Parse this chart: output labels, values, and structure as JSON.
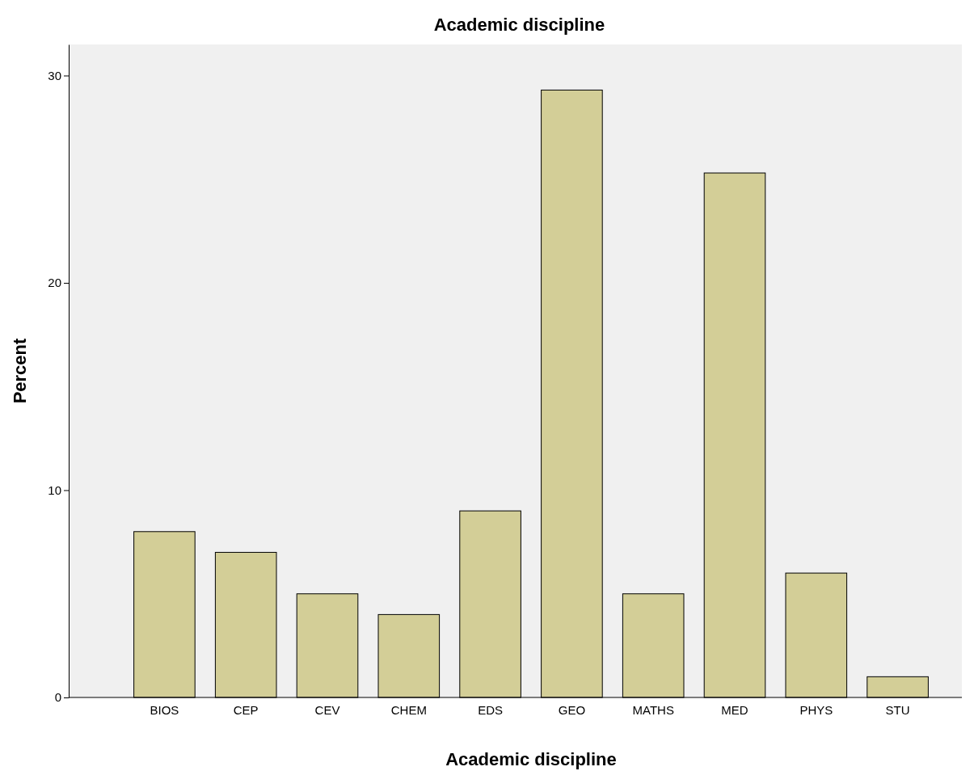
{
  "chart_data": {
    "type": "bar",
    "title": "Academic discipline",
    "xlabel": "Academic discipline",
    "ylabel": "Percent",
    "categories": [
      "BIOS",
      "CEP",
      "CEV",
      "CHEM",
      "EDS",
      "GEO",
      "MATHS",
      "MED",
      "PHYS",
      "STU"
    ],
    "values": [
      8,
      7,
      5,
      4,
      9,
      29.3,
      5,
      25.3,
      6,
      1
    ],
    "color": "#d3ce97",
    "ylim": [
      0,
      31.5
    ],
    "yticks": [
      0,
      10,
      20,
      30
    ],
    "grid": false
  }
}
